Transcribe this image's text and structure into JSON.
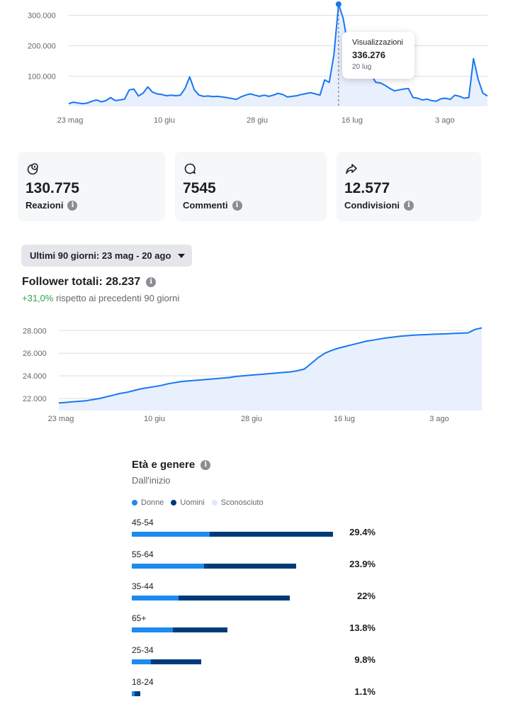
{
  "views_chart": {
    "type": "line",
    "y_ticks": [
      "300.000",
      "200.000",
      "100.000"
    ],
    "x_ticks": [
      "23 mag",
      "10 giu",
      "28 giu",
      "16 lug",
      "3 ago"
    ],
    "ylim": [
      0,
      350000
    ],
    "values": [
      10000,
      15000,
      12000,
      10000,
      12000,
      18000,
      22000,
      16000,
      20000,
      30000,
      20000,
      22000,
      25000,
      55000,
      58000,
      35000,
      45000,
      65000,
      48000,
      42000,
      40000,
      36000,
      38000,
      36000,
      38000,
      60000,
      98000,
      55000,
      38000,
      34000,
      35000,
      33000,
      34000,
      32000,
      30000,
      27000,
      24000,
      32000,
      38000,
      42000,
      38000,
      34000,
      38000,
      34000,
      38000,
      44000,
      40000,
      32000,
      34000,
      36000,
      40000,
      43000,
      46000,
      42000,
      38000,
      88000,
      80000,
      170000,
      336276,
      290000,
      200000,
      140000,
      110000,
      95000,
      100000,
      105000,
      80000,
      78000,
      70000,
      60000,
      52000,
      55000,
      58000,
      60000,
      30000,
      28000,
      22000,
      25000,
      20000,
      18000,
      26000,
      28000,
      24000,
      38000,
      34000,
      28000,
      30000,
      158000,
      90000,
      45000,
      35000
    ],
    "highlight_index": 58,
    "tooltip": {
      "label": "Visualizzazioni",
      "value": "336.276",
      "date": "20 lug"
    }
  },
  "metrics": [
    {
      "icon": "reactions-icon",
      "value": "130.775",
      "label": "Reazioni"
    },
    {
      "icon": "comment-icon",
      "value": "7545",
      "label": "Commenti"
    },
    {
      "icon": "share-icon",
      "value": "12.577",
      "label": "Condivisioni"
    }
  ],
  "period_selector": {
    "label": "Ultimi 90 giorni: 23 mag - 20 ago"
  },
  "followers": {
    "title": "Follower totali: 28.237",
    "change": "+31,0%",
    "change_suffix": " rispetto ai precedenti 90 giorni"
  },
  "followers_chart": {
    "type": "area",
    "y_ticks": [
      "28.000",
      "26.000",
      "24.000",
      "22.000"
    ],
    "x_ticks": [
      "23 mag",
      "10 giu",
      "28 giu",
      "16 lug",
      "3 ago"
    ],
    "ylim": [
      21000,
      28800
    ],
    "values": [
      21600,
      21650,
      21700,
      21750,
      21800,
      21900,
      22000,
      22150,
      22300,
      22450,
      22550,
      22700,
      22850,
      22950,
      23050,
      23150,
      23300,
      23400,
      23500,
      23550,
      23600,
      23650,
      23700,
      23750,
      23800,
      23850,
      23950,
      24000,
      24050,
      24100,
      24150,
      24200,
      24250,
      24300,
      24350,
      24450,
      24600,
      25100,
      25600,
      26000,
      26250,
      26450,
      26600,
      26750,
      26900,
      27050,
      27150,
      27250,
      27350,
      27420,
      27500,
      27550,
      27600,
      27620,
      27650,
      27680,
      27700,
      27720,
      27750,
      27770,
      27800,
      28100,
      28237
    ]
  },
  "demographics": {
    "title": "Età e genere",
    "subtitle": "Dall'inizio",
    "legend": [
      {
        "name": "Donne",
        "color": "#1b8bf0"
      },
      {
        "name": "Uomini",
        "color": "#003b78"
      },
      {
        "name": "Sconosciuto",
        "color": "#dbeafc"
      }
    ],
    "rows": [
      {
        "age": "45-54",
        "pct": "29.4%",
        "women": 110,
        "men": 174
      },
      {
        "age": "55-64",
        "pct": "23.9%",
        "women": 102,
        "men": 130
      },
      {
        "age": "35-44",
        "pct": "22%",
        "women": 66,
        "men": 157
      },
      {
        "age": "65+",
        "pct": "13.8%",
        "women": 58,
        "men": 77
      },
      {
        "age": "25-34",
        "pct": "9.8%",
        "women": 27,
        "men": 71
      },
      {
        "age": "18-24",
        "pct": "1.1%",
        "women": 4,
        "men": 8
      }
    ]
  }
}
